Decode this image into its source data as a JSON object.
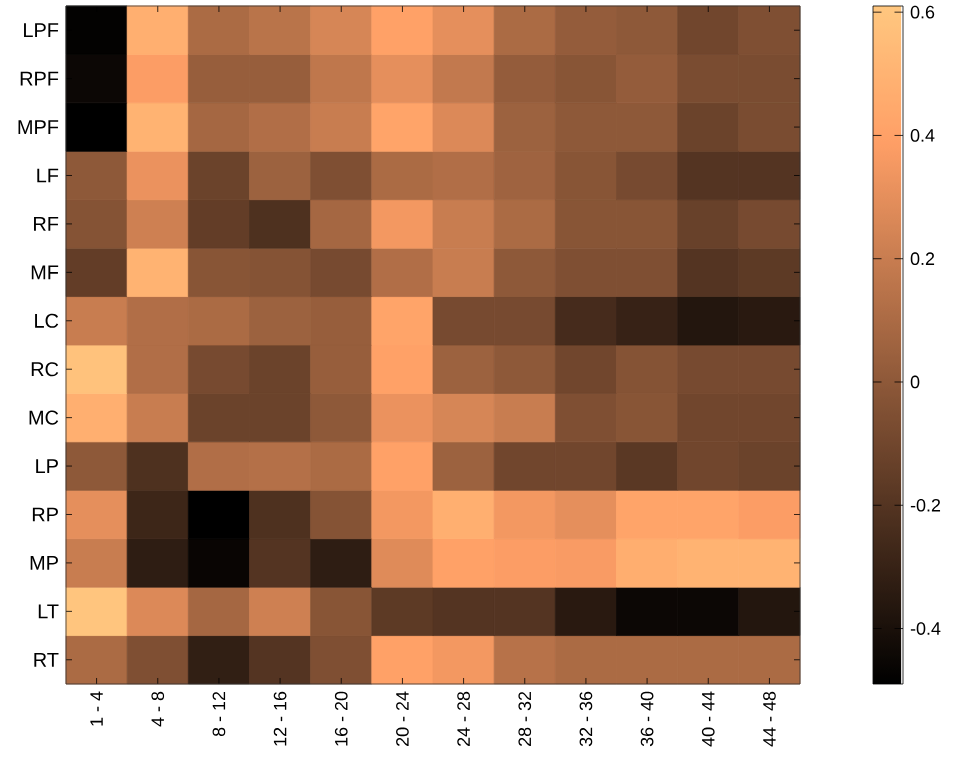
{
  "chart_data": {
    "type": "heatmap",
    "categories": [
      "1 - 4",
      "4 - 8",
      "8 - 12",
      "12 - 16",
      "16 - 20",
      "20 - 24",
      "24 - 28",
      "28 - 32",
      "32 - 36",
      "36 - 40",
      "40 - 44",
      "44 - 48"
    ],
    "y_categories": [
      "LPF",
      "RPF",
      "MPF",
      "LF",
      "RF",
      "MF",
      "LC",
      "RC",
      "MC",
      "LP",
      "RP",
      "MP",
      "LT",
      "RT"
    ],
    "cells": [
      [
        -0.48,
        0.48,
        0.1,
        0.15,
        0.25,
        0.4,
        0.3,
        0.1,
        0.02,
        0.0,
        -0.1,
        -0.05
      ],
      [
        -0.45,
        0.38,
        0.03,
        0.03,
        0.17,
        0.3,
        0.18,
        0.02,
        -0.02,
        0.02,
        -0.07,
        -0.07
      ],
      [
        -0.49,
        0.5,
        0.08,
        0.12,
        0.2,
        0.42,
        0.27,
        0.05,
        0.0,
        0.0,
        -0.12,
        -0.07
      ],
      [
        0.0,
        0.32,
        -0.12,
        0.05,
        -0.05,
        0.1,
        0.12,
        0.06,
        -0.02,
        -0.08,
        -0.2,
        -0.2
      ],
      [
        -0.03,
        0.22,
        -0.15,
        -0.22,
        0.08,
        0.35,
        0.2,
        0.1,
        -0.02,
        -0.02,
        -0.13,
        -0.08
      ],
      [
        -0.15,
        0.5,
        -0.02,
        -0.03,
        -0.08,
        0.12,
        0.2,
        0.0,
        -0.05,
        -0.05,
        -0.2,
        -0.17
      ],
      [
        0.2,
        0.12,
        0.1,
        0.05,
        0.03,
        0.42,
        -0.08,
        -0.08,
        -0.25,
        -0.3,
        -0.37,
        -0.35
      ],
      [
        0.58,
        0.12,
        -0.08,
        -0.12,
        0.03,
        0.4,
        0.05,
        0.0,
        -0.1,
        -0.03,
        -0.08,
        -0.08
      ],
      [
        0.48,
        0.2,
        -0.12,
        -0.12,
        0.0,
        0.32,
        0.25,
        0.2,
        -0.05,
        -0.02,
        -0.1,
        -0.1
      ],
      [
        0.0,
        -0.22,
        0.12,
        0.13,
        0.1,
        0.4,
        0.05,
        -0.1,
        -0.1,
        -0.18,
        -0.1,
        -0.12
      ],
      [
        0.3,
        -0.28,
        -0.49,
        -0.22,
        -0.03,
        0.35,
        0.48,
        0.35,
        0.3,
        0.42,
        0.42,
        0.38
      ],
      [
        0.2,
        -0.33,
        -0.46,
        -0.2,
        -0.33,
        0.28,
        0.4,
        0.38,
        0.37,
        0.47,
        0.5,
        0.5
      ],
      [
        0.6,
        0.27,
        0.08,
        0.22,
        -0.02,
        -0.17,
        -0.2,
        -0.2,
        -0.35,
        -0.45,
        -0.45,
        -0.37
      ],
      [
        0.1,
        -0.05,
        -0.32,
        -0.2,
        -0.05,
        0.4,
        0.35,
        0.14,
        0.1,
        0.1,
        0.1,
        0.1
      ]
    ],
    "clim": [
      -0.49,
      0.61
    ],
    "cticks": [
      {
        "value": -0.4,
        "label": "-0.4"
      },
      {
        "value": -0.2,
        "label": "-0.2"
      },
      0,
      0.2,
      0.4,
      0.6
    ]
  }
}
